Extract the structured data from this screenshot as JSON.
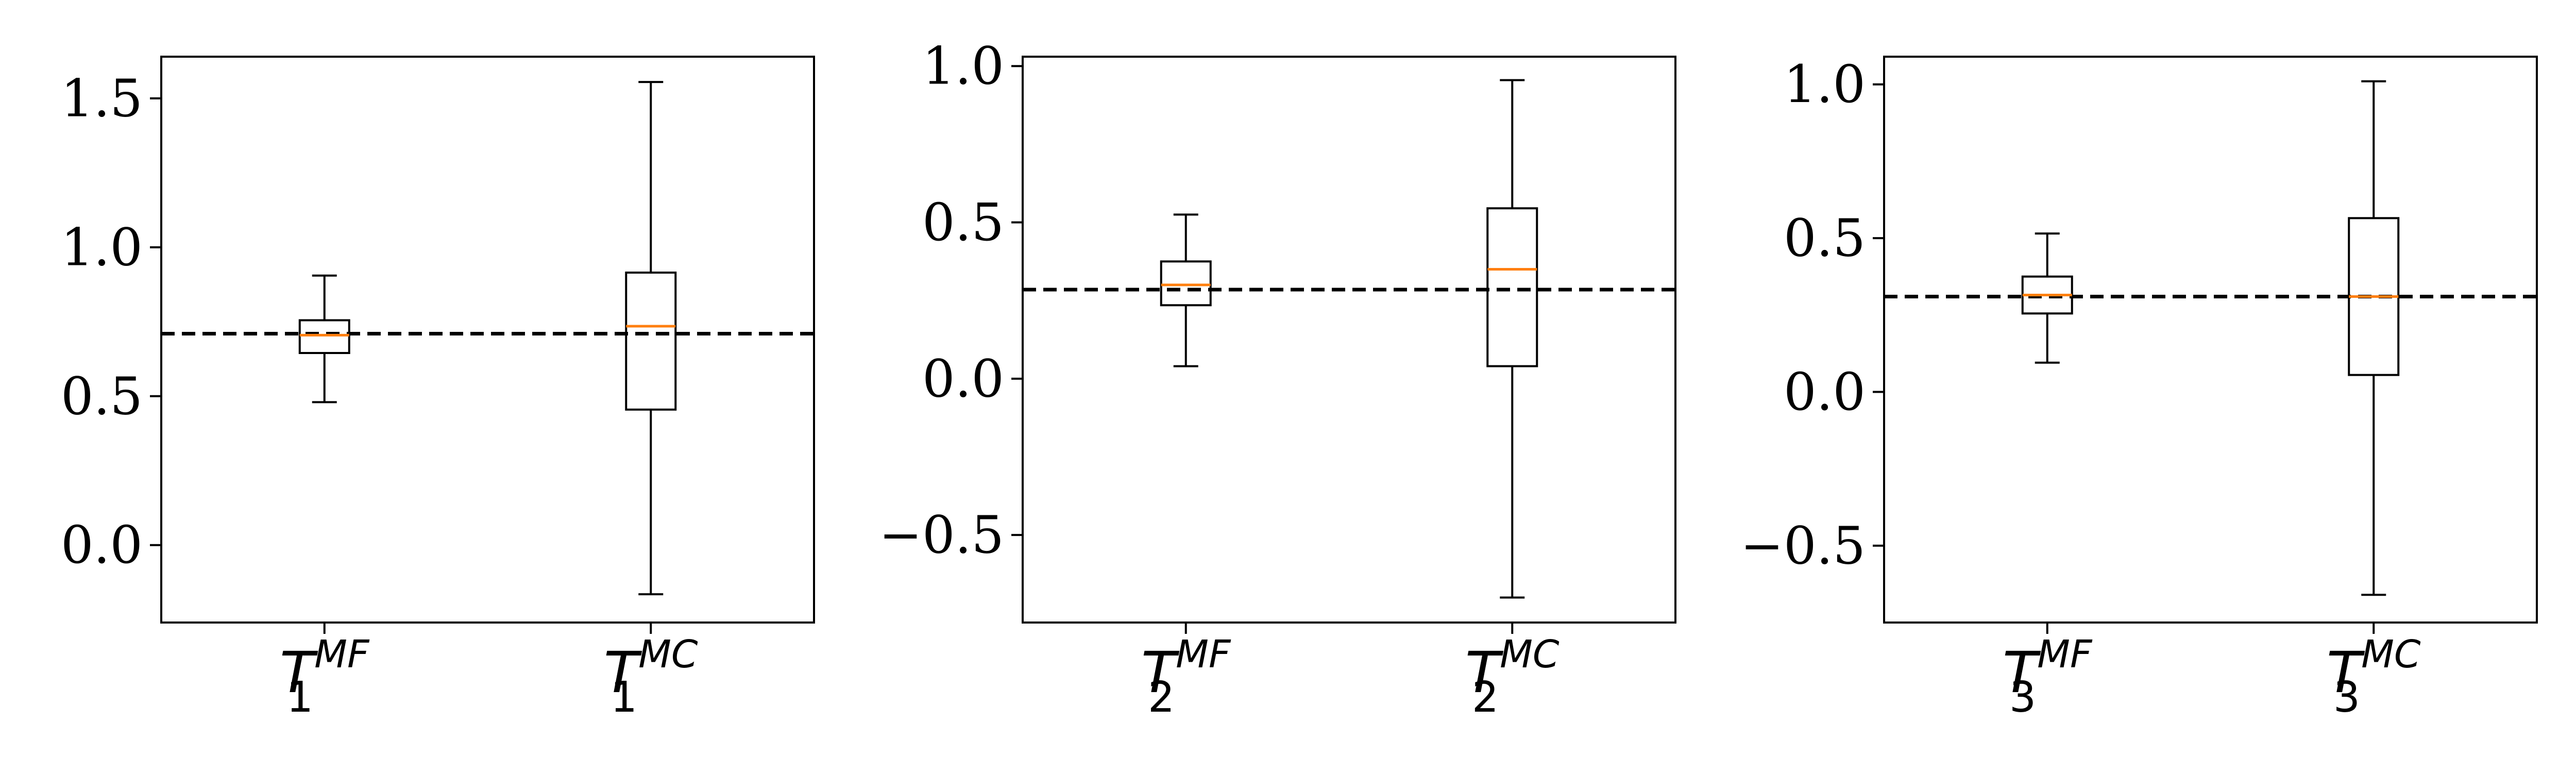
{
  "chart_data": [
    {
      "type": "boxplot",
      "title": "",
      "xlabel": "",
      "ylabel": "",
      "ylim": [
        -0.26,
        1.64
      ],
      "yticks": [
        0.0,
        0.5,
        1.0,
        1.5
      ],
      "ytick_labels": [
        "0.0",
        "0.5",
        "1.0",
        "1.5"
      ],
      "reference_line": 0.71,
      "categories": [
        {
          "base": "T",
          "sub": "1",
          "sup": "MF"
        },
        {
          "base": "T",
          "sub": "1",
          "sup": "MC"
        }
      ],
      "boxes": [
        {
          "whislo": 0.48,
          "q1": 0.645,
          "med": 0.705,
          "q3": 0.755,
          "whishi": 0.905
        },
        {
          "whislo": -0.165,
          "q1": 0.455,
          "med": 0.735,
          "q3": 0.915,
          "whishi": 1.555
        }
      ]
    },
    {
      "type": "boxplot",
      "title": "",
      "xlabel": "",
      "ylabel": "",
      "ylim": [
        -0.78,
        1.03
      ],
      "yticks": [
        -0.5,
        0.0,
        0.5,
        1.0
      ],
      "ytick_labels": [
        "−0.5",
        "0.0",
        "0.5",
        "1.0"
      ],
      "reference_line": 0.285,
      "categories": [
        {
          "base": "T",
          "sub": "2",
          "sup": "MF"
        },
        {
          "base": "T",
          "sub": "2",
          "sup": "MC"
        }
      ],
      "boxes": [
        {
          "whislo": 0.04,
          "q1": 0.235,
          "med": 0.3,
          "q3": 0.375,
          "whishi": 0.525
        },
        {
          "whislo": -0.7,
          "q1": 0.04,
          "med": 0.35,
          "q3": 0.545,
          "whishi": 0.955
        }
      ]
    },
    {
      "type": "boxplot",
      "title": "",
      "xlabel": "",
      "ylabel": "",
      "ylim": [
        -0.75,
        1.09
      ],
      "yticks": [
        -0.5,
        0.0,
        0.5,
        1.0
      ],
      "ytick_labels": [
        "−0.5",
        "0.0",
        "0.5",
        "1.0"
      ],
      "reference_line": 0.31,
      "categories": [
        {
          "base": "T",
          "sub": "3",
          "sup": "MF"
        },
        {
          "base": "T",
          "sub": "3",
          "sup": "MC"
        }
      ],
      "boxes": [
        {
          "whislo": 0.095,
          "q1": 0.255,
          "med": 0.315,
          "q3": 0.375,
          "whishi": 0.515
        },
        {
          "whislo": -0.66,
          "q1": 0.055,
          "med": 0.31,
          "q3": 0.565,
          "whishi": 1.01
        }
      ]
    }
  ],
  "colors": {
    "box": "#000000",
    "median": "#ff7f0e",
    "reference_line": "#000000"
  }
}
